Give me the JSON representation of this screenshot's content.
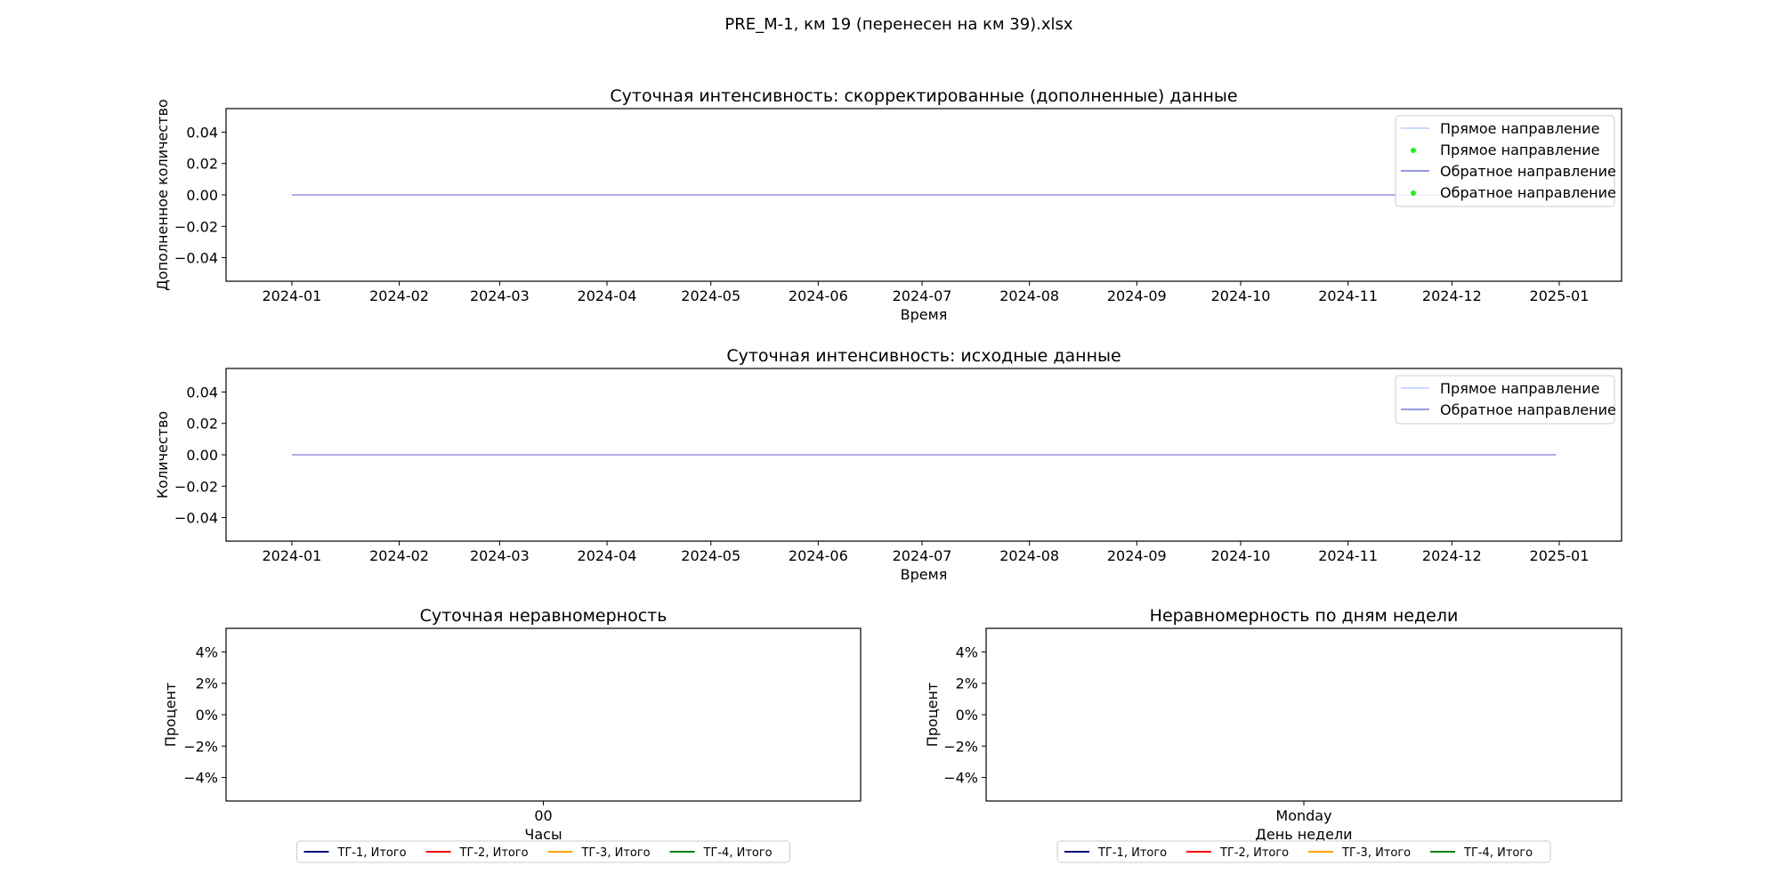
{
  "figure_title": "PRE_M-1, км  19 (перенесен на км 39).xlsx",
  "colors": {
    "forward": "#aac4ff",
    "reverse": "#5b5bd6",
    "marker": "#22ee22",
    "tg1": "#000080",
    "tg2": "#ff0000",
    "tg3": "#ffa500",
    "tg4": "#008000"
  },
  "chart_data": [
    {
      "id": "corrected",
      "type": "line",
      "title": "Суточная интенсивность: скорректированные (дополненные) данные",
      "xlabel": "Время",
      "ylabel": "Дополненное количество",
      "x_ticks": [
        "2024-01",
        "2024-02",
        "2024-03",
        "2024-04",
        "2024-05",
        "2024-06",
        "2024-07",
        "2024-08",
        "2024-09",
        "2024-10",
        "2024-11",
        "2024-12",
        "2025-01"
      ],
      "y_ticks": [
        "0.04",
        "0.02",
        "0.00",
        "−0.02",
        "−0.04"
      ],
      "y_tick_values": [
        0.04,
        0.02,
        0.0,
        -0.02,
        -0.04
      ],
      "ylim": [
        -0.055,
        0.055
      ],
      "xlim": [
        "2023-12-13",
        "2025-01-19"
      ],
      "series": [
        {
          "name": "Прямое направление",
          "kind": "line",
          "color": "#aac4ff",
          "x": [
            "2024-01-01",
            "2024-12-31"
          ],
          "y": [
            0,
            0
          ]
        },
        {
          "name": "Прямое направление",
          "kind": "points",
          "color": "#22ee22",
          "x": [],
          "y": []
        },
        {
          "name": "Обратное направление",
          "kind": "line",
          "color": "#5b5bd6",
          "x": [
            "2024-01-01",
            "2024-12-31"
          ],
          "y": [
            0,
            0
          ]
        },
        {
          "name": "Обратное направление",
          "kind": "points",
          "color": "#22ee22",
          "x": [],
          "y": []
        }
      ],
      "legend": {
        "placement": "top-right",
        "entries": [
          "Прямое направление",
          "Прямое направление",
          "Обратное направление",
          "Обратное направление"
        ]
      }
    },
    {
      "id": "raw",
      "type": "line",
      "title": "Суточная интенсивность: исходные данные",
      "xlabel": "Время",
      "ylabel": "Количество",
      "x_ticks": [
        "2024-01",
        "2024-02",
        "2024-03",
        "2024-04",
        "2024-05",
        "2024-06",
        "2024-07",
        "2024-08",
        "2024-09",
        "2024-10",
        "2024-11",
        "2024-12",
        "2025-01"
      ],
      "y_ticks": [
        "0.04",
        "0.02",
        "0.00",
        "−0.02",
        "−0.04"
      ],
      "y_tick_values": [
        0.04,
        0.02,
        0.0,
        -0.02,
        -0.04
      ],
      "ylim": [
        -0.055,
        0.055
      ],
      "xlim": [
        "2023-12-13",
        "2025-01-19"
      ],
      "series": [
        {
          "name": "Прямое направление",
          "kind": "line",
          "color": "#aac4ff",
          "x": [
            "2024-01-01",
            "2024-12-31"
          ],
          "y": [
            0,
            0
          ]
        },
        {
          "name": "Обратное направление",
          "kind": "line",
          "color": "#5b5bd6",
          "x": [
            "2024-01-01",
            "2024-12-31"
          ],
          "y": [
            0,
            0
          ]
        }
      ],
      "legend": {
        "placement": "top-right",
        "entries": [
          "Прямое направление",
          "Обратное направление"
        ]
      }
    },
    {
      "id": "hourly",
      "type": "line",
      "title": "Суточная неравномерность",
      "xlabel": "Часы",
      "ylabel": "Процент",
      "x_ticks": [
        "00"
      ],
      "y_ticks": [
        "4%",
        "2%",
        "0%",
        "−2%",
        "−4%"
      ],
      "y_tick_values": [
        4,
        2,
        0,
        -2,
        -4
      ],
      "ylim": [
        -5.5,
        5.5
      ],
      "series": [
        {
          "name": "ТГ-1, Итого",
          "color": "#000080",
          "values": []
        },
        {
          "name": "ТГ-2, Итого",
          "color": "#ff0000",
          "values": []
        },
        {
          "name": "ТГ-3, Итого",
          "color": "#ffa500",
          "values": []
        },
        {
          "name": "ТГ-4, Итого",
          "color": "#008000",
          "values": []
        }
      ],
      "legend": {
        "placement": "below",
        "entries": [
          "ТГ-1, Итого",
          "ТГ-2, Итого",
          "ТГ-3, Итого",
          "ТГ-4, Итого"
        ]
      }
    },
    {
      "id": "weekday",
      "type": "line",
      "title": "Неравномерность по дням недели",
      "xlabel": "День недели",
      "ylabel": "Процент",
      "x_ticks": [
        "Monday"
      ],
      "y_ticks": [
        "4%",
        "2%",
        "0%",
        "−2%",
        "−4%"
      ],
      "y_tick_values": [
        4,
        2,
        0,
        -2,
        -4
      ],
      "ylim": [
        -5.5,
        5.5
      ],
      "series": [
        {
          "name": "ТГ-1, Итого",
          "color": "#000080",
          "values": []
        },
        {
          "name": "ТГ-2, Итого",
          "color": "#ff0000",
          "values": []
        },
        {
          "name": "ТГ-3, Итого",
          "color": "#ffa500",
          "values": []
        },
        {
          "name": "ТГ-4, Итого",
          "color": "#008000",
          "values": []
        }
      ],
      "legend": {
        "placement": "below",
        "entries": [
          "ТГ-1, Итого",
          "ТГ-2, Итого",
          "ТГ-3, Итого",
          "ТГ-4, Итого"
        ]
      }
    }
  ]
}
